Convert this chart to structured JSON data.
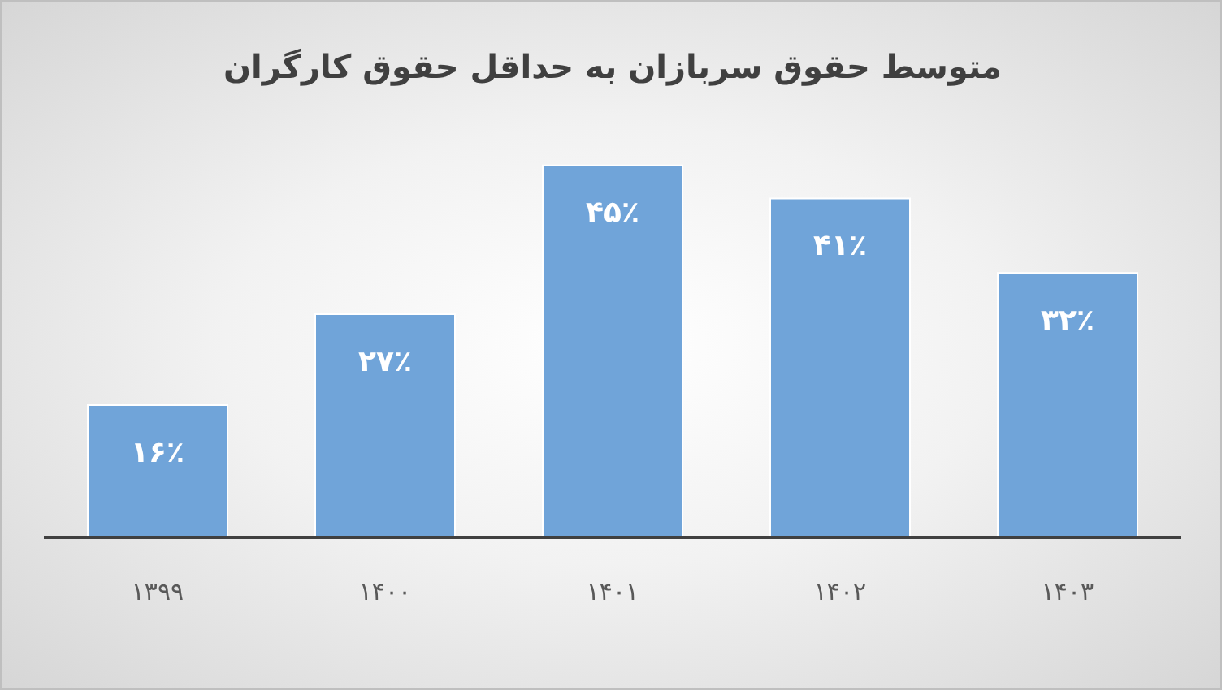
{
  "chart_data": {
    "type": "bar",
    "title": "متوسط حقوق سربازان به حداقل حقوق کارگران",
    "categories": [
      "۱۳۹۹",
      "۱۴۰۰",
      "۱۴۰۱",
      "۱۴۰۲",
      "۱۴۰۳"
    ],
    "values": [
      16,
      27,
      45,
      41,
      32
    ],
    "value_labels": [
      "۱۶٪",
      "۲۷٪",
      "۴۵٪",
      "۴۱٪",
      "۳۲٪"
    ],
    "color": "#70a4d9",
    "grid": false,
    "legend": false
  }
}
